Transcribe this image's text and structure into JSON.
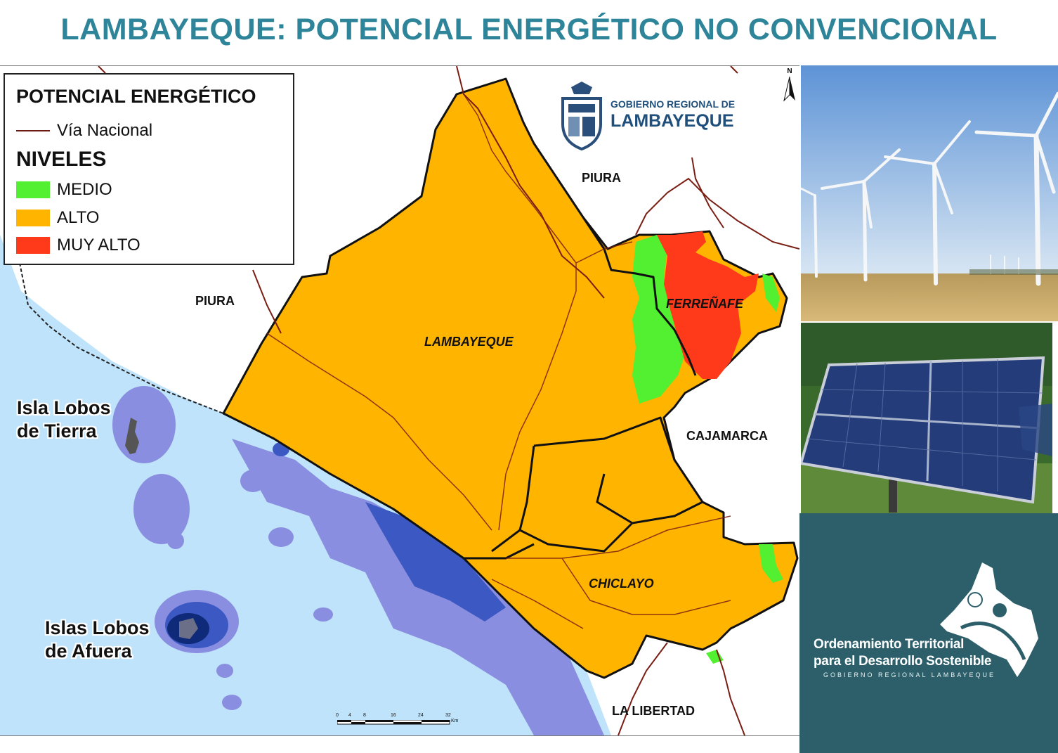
{
  "title": "LAMBAYEQUE: POTENCIAL ENERGÉTICO NO CONVENCIONAL",
  "legend": {
    "title": "POTENCIAL ENERGÉTICO",
    "road_label": "Vía Nacional",
    "levels_title": "NIVELES",
    "levels": [
      {
        "label": "MEDIO",
        "color": "#52f030"
      },
      {
        "label": "ALTO",
        "color": "#ffb400"
      },
      {
        "label": "MUY ALTO",
        "color": "#ff3a1a"
      }
    ]
  },
  "logo": {
    "line1": "GOBIERNO REGIONAL DE",
    "line2": "LAMBAYEQUE"
  },
  "north": "N",
  "regions": {
    "piura_north": "PIURA",
    "piura_west": "PIURA",
    "cajamarca": "CAJAMARCA",
    "la_libertad": "LA LIBERTAD"
  },
  "provinces": {
    "lambayeque": "LAMBAYEQUE",
    "ferrenafe": "FERREÑAFE",
    "chiclayo": "CHICLAYO"
  },
  "islands": {
    "lobos_tierra_1": "Isla Lobos",
    "lobos_tierra_2": "de Tierra",
    "lobos_afuera_1": "Islas Lobos",
    "lobos_afuera_2": "de Afuera"
  },
  "scale_bar": {
    "ticks": [
      "0",
      "4",
      "8",
      "16",
      "24",
      "32"
    ],
    "unit": "Km"
  },
  "brand": {
    "line1": "Ordenamiento Territorial",
    "line2": "para el Desarrollo Sostenible",
    "line3": "GOBIERNO REGIONAL LAMBAYEQUE"
  },
  "colors": {
    "title": "#2e8599",
    "ocean": "#bfe3fb",
    "alto": "#ffb400",
    "medio": "#52f030",
    "muy_alto": "#ff3a1a",
    "bathy_light": "#8a8ee0",
    "bathy_mid": "#3c58c2",
    "bathy_dark": "#0f2a78",
    "brand_panel": "#2c5f6a"
  }
}
